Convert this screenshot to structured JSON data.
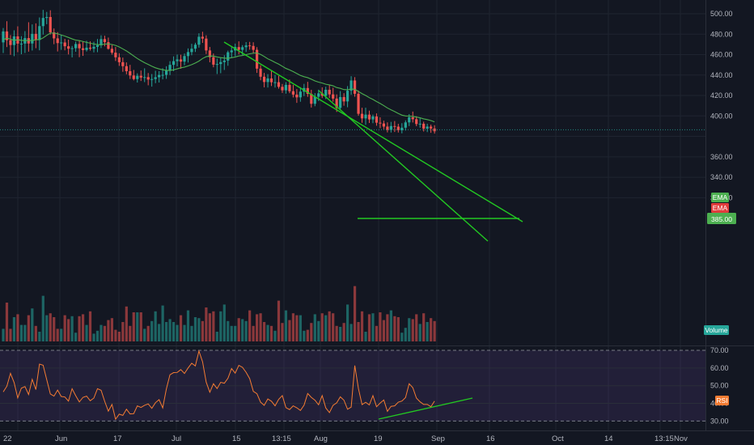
{
  "chart_data": {
    "type": "candlestick",
    "price_axis": {
      "ylim": [
        302,
        508
      ],
      "ticks": [
        "500.00",
        "480.00",
        "460.00",
        "440.00",
        "420.00",
        "400.00",
        "385.00",
        "360.00",
        "340.00",
        "320.00"
      ]
    },
    "rsi_axis": {
      "ylim": [
        27,
        74
      ],
      "ticks": [
        "70.00",
        "60.00",
        "50.00",
        "40.00",
        "30.00"
      ]
    },
    "x_labels": [
      "22",
      "Jun",
      "17",
      "Jul",
      "15",
      "13:15",
      "Aug",
      "19",
      "Sep",
      "16",
      "Oct",
      "14",
      "13:15",
      "Nov"
    ],
    "badges": {
      "ema_upper": "EMA",
      "ema_lower": "EMA",
      "last_price": "385.00",
      "volume": "Volume",
      "rsi": "RSI"
    },
    "last_price_value": 385,
    "rsi_levels": [
      70,
      30
    ],
    "ema_value": 386.5,
    "colors": {
      "background": "#131722",
      "up": "#26a69a",
      "down": "#ef5350",
      "ema": "#4caf50",
      "trendline": "#22c922",
      "rsi_line": "#f57c33",
      "rsi_band": "#7e57c2"
    },
    "ohlc": [
      {
        "o": 472.0,
        "h": 486.0,
        "l": 461.6,
        "c": 482.7
      },
      {
        "o": 482.7,
        "h": 492.7,
        "l": 467.4,
        "c": 474.1
      },
      {
        "o": 474.1,
        "h": 479.1,
        "l": 459.8,
        "c": 469.4
      },
      {
        "o": 469.4,
        "h": 483.8,
        "l": 458.5,
        "c": 477.9
      },
      {
        "o": 477.9,
        "h": 487.7,
        "l": 462.4,
        "c": 470.8
      },
      {
        "o": 470.8,
        "h": 478.1,
        "l": 460.4,
        "c": 470.8
      },
      {
        "o": 470.8,
        "h": 483.0,
        "l": 461.6,
        "c": 476.2
      },
      {
        "o": 476.2,
        "h": 491.7,
        "l": 462.9,
        "c": 470.9
      },
      {
        "o": 470.9,
        "h": 489.6,
        "l": 464.0,
        "c": 480.3
      },
      {
        "o": 480.3,
        "h": 490.6,
        "l": 466.3,
        "c": 474.4
      },
      {
        "o": 474.4,
        "h": 496.4,
        "l": 464.2,
        "c": 487.9
      },
      {
        "o": 487.9,
        "h": 503.8,
        "l": 479.6,
        "c": 495.9
      },
      {
        "o": 495.9,
        "h": 501.8,
        "l": 489.8,
        "c": 496.8
      },
      {
        "o": 496.8,
        "h": 503.4,
        "l": 479.7,
        "c": 481.8
      },
      {
        "o": 481.8,
        "h": 485.6,
        "l": 470.2,
        "c": 475.9
      },
      {
        "o": 475.9,
        "h": 482.1,
        "l": 463.1,
        "c": 471.3
      },
      {
        "o": 471.3,
        "h": 479.0,
        "l": 464.7,
        "c": 471.9
      },
      {
        "o": 471.9,
        "h": 475.4,
        "l": 464.2,
        "c": 468.2
      },
      {
        "o": 468.2,
        "h": 474.7,
        "l": 460.2,
        "c": 465.8
      },
      {
        "o": 465.8,
        "h": 468.5,
        "l": 457.3,
        "c": 466.3
      },
      {
        "o": 466.3,
        "h": 472.8,
        "l": 462.8,
        "c": 470.4
      },
      {
        "o": 470.4,
        "h": 473.9,
        "l": 457.5,
        "c": 466.2
      },
      {
        "o": 466.2,
        "h": 473.1,
        "l": 458.8,
        "c": 464.5
      },
      {
        "o": 464.5,
        "h": 473.6,
        "l": 463.0,
        "c": 466.8
      },
      {
        "o": 466.8,
        "h": 473.0,
        "l": 464.0,
        "c": 465.8
      },
      {
        "o": 465.8,
        "h": 472.6,
        "l": 462.2,
        "c": 467.6
      },
      {
        "o": 467.6,
        "h": 475.3,
        "l": 462.4,
        "c": 469.2
      },
      {
        "o": 469.2,
        "h": 478.9,
        "l": 466.4,
        "c": 475.2
      },
      {
        "o": 475.2,
        "h": 478.5,
        "l": 468.1,
        "c": 472.2
      },
      {
        "o": 472.2,
        "h": 476.7,
        "l": 464.9,
        "c": 465.7
      },
      {
        "o": 465.7,
        "h": 469.4,
        "l": 460.0,
        "c": 461.9
      },
      {
        "o": 461.9,
        "h": 467.5,
        "l": 453.8,
        "c": 457.4
      },
      {
        "o": 457.4,
        "h": 461.3,
        "l": 449.0,
        "c": 452.6
      },
      {
        "o": 452.6,
        "h": 457.1,
        "l": 443.2,
        "c": 448.7
      },
      {
        "o": 448.7,
        "h": 452.4,
        "l": 440.8,
        "c": 443.8
      },
      {
        "o": 443.8,
        "h": 450.0,
        "l": 436.2,
        "c": 439.6
      },
      {
        "o": 439.6,
        "h": 445.0,
        "l": 434.8,
        "c": 436.1
      },
      {
        "o": 436.1,
        "h": 441.7,
        "l": 432.7,
        "c": 439.3
      },
      {
        "o": 439.3,
        "h": 444.5,
        "l": 434.2,
        "c": 437.6
      },
      {
        "o": 437.6,
        "h": 446.6,
        "l": 433.1,
        "c": 438.0
      },
      {
        "o": 438.0,
        "h": 442.0,
        "l": 430.0,
        "c": 435.6
      },
      {
        "o": 435.6,
        "h": 441.0,
        "l": 428.7,
        "c": 436.1
      },
      {
        "o": 436.1,
        "h": 444.2,
        "l": 432.1,
        "c": 437.9
      },
      {
        "o": 437.9,
        "h": 443.9,
        "l": 432.7,
        "c": 440.1
      },
      {
        "o": 440.1,
        "h": 446.7,
        "l": 435.8,
        "c": 440.2
      },
      {
        "o": 440.2,
        "h": 448.6,
        "l": 436.3,
        "c": 444.3
      },
      {
        "o": 444.3,
        "h": 453.6,
        "l": 440.0,
        "c": 450.0
      },
      {
        "o": 450.0,
        "h": 458.3,
        "l": 443.8,
        "c": 453.6
      },
      {
        "o": 453.6,
        "h": 460.1,
        "l": 448.5,
        "c": 455.3
      },
      {
        "o": 455.3,
        "h": 459.9,
        "l": 446.2,
        "c": 453.2
      },
      {
        "o": 453.2,
        "h": 461.1,
        "l": 449.6,
        "c": 458.6
      },
      {
        "o": 458.6,
        "h": 466.1,
        "l": 452.3,
        "c": 462.5
      },
      {
        "o": 462.5,
        "h": 470.6,
        "l": 459.4,
        "c": 465.8
      },
      {
        "o": 465.8,
        "h": 471.6,
        "l": 462.6,
        "c": 469.7
      },
      {
        "o": 469.7,
        "h": 480.9,
        "l": 466.9,
        "c": 477.5
      },
      {
        "o": 477.5,
        "h": 482.4,
        "l": 471.5,
        "c": 475.7
      },
      {
        "o": 475.7,
        "h": 478.9,
        "l": 460.6,
        "c": 464.1
      },
      {
        "o": 464.1,
        "h": 467.5,
        "l": 452.5,
        "c": 457.5
      },
      {
        "o": 457.5,
        "h": 461.1,
        "l": 447.6,
        "c": 450.2
      },
      {
        "o": 450.2,
        "h": 456.2,
        "l": 441.0,
        "c": 450.8
      },
      {
        "o": 450.8,
        "h": 456.8,
        "l": 441.8,
        "c": 452.7
      },
      {
        "o": 452.7,
        "h": 459.4,
        "l": 445.0,
        "c": 454.2
      },
      {
        "o": 454.2,
        "h": 463.9,
        "l": 449.1,
        "c": 462.3
      },
      {
        "o": 462.3,
        "h": 467.3,
        "l": 457.2,
        "c": 464.1
      },
      {
        "o": 464.1,
        "h": 470.8,
        "l": 458.5,
        "c": 467.4
      },
      {
        "o": 467.4,
        "h": 473.0,
        "l": 460.3,
        "c": 464.7
      },
      {
        "o": 464.7,
        "h": 469.3,
        "l": 459.7,
        "c": 467.3
      },
      {
        "o": 467.3,
        "h": 472.3,
        "l": 462.7,
        "c": 469.0
      },
      {
        "o": 469.0,
        "h": 472.5,
        "l": 464.8,
        "c": 468.5
      },
      {
        "o": 468.5,
        "h": 472.1,
        "l": 461.1,
        "c": 464.7
      },
      {
        "o": 464.7,
        "h": 467.3,
        "l": 442.1,
        "c": 446.3
      },
      {
        "o": 446.3,
        "h": 449.6,
        "l": 434.9,
        "c": 438.4
      },
      {
        "o": 438.4,
        "h": 442.1,
        "l": 428.0,
        "c": 433.2
      },
      {
        "o": 433.2,
        "h": 440.9,
        "l": 427.8,
        "c": 436.7
      },
      {
        "o": 436.7,
        "h": 443.9,
        "l": 429.3,
        "c": 433.0
      },
      {
        "o": 433.0,
        "h": 440.2,
        "l": 427.8,
        "c": 433.0
      },
      {
        "o": 433.0,
        "h": 439.3,
        "l": 426.7,
        "c": 428.5
      },
      {
        "o": 428.5,
        "h": 431.3,
        "l": 422.5,
        "c": 425.1
      },
      {
        "o": 425.1,
        "h": 433.1,
        "l": 421.8,
        "c": 430.4
      },
      {
        "o": 430.4,
        "h": 435.6,
        "l": 422.3,
        "c": 424.2
      },
      {
        "o": 424.2,
        "h": 430.4,
        "l": 418.1,
        "c": 420.9
      },
      {
        "o": 420.9,
        "h": 426.3,
        "l": 412.8,
        "c": 418.2
      },
      {
        "o": 418.2,
        "h": 428.1,
        "l": 413.9,
        "c": 423.8
      },
      {
        "o": 423.8,
        "h": 431.4,
        "l": 419.5,
        "c": 427.3
      },
      {
        "o": 427.3,
        "h": 433.4,
        "l": 418.7,
        "c": 421.6
      },
      {
        "o": 421.6,
        "h": 425.6,
        "l": 408.2,
        "c": 411.9
      },
      {
        "o": 411.9,
        "h": 422.3,
        "l": 409.5,
        "c": 418.8
      },
      {
        "o": 418.8,
        "h": 425.7,
        "l": 414.6,
        "c": 422.1
      },
      {
        "o": 422.1,
        "h": 428.0,
        "l": 417.5,
        "c": 419.7
      },
      {
        "o": 419.7,
        "h": 428.6,
        "l": 416.5,
        "c": 425.6
      },
      {
        "o": 425.6,
        "h": 430.0,
        "l": 417.5,
        "c": 421.1
      },
      {
        "o": 421.1,
        "h": 427.6,
        "l": 414.0,
        "c": 417.0
      },
      {
        "o": 417.0,
        "h": 421.1,
        "l": 403.9,
        "c": 407.9
      },
      {
        "o": 407.9,
        "h": 424.3,
        "l": 405.5,
        "c": 418.5
      },
      {
        "o": 418.5,
        "h": 422.3,
        "l": 410.0,
        "c": 414.2
      },
      {
        "o": 414.2,
        "h": 429.2,
        "l": 408.5,
        "c": 424.7
      },
      {
        "o": 424.7,
        "h": 438.9,
        "l": 420.7,
        "c": 434.7
      },
      {
        "o": 434.7,
        "h": 438.0,
        "l": 418.8,
        "c": 421.7
      },
      {
        "o": 421.7,
        "h": 424.9,
        "l": 400.2,
        "c": 402.1
      },
      {
        "o": 402.1,
        "h": 408.0,
        "l": 393.3,
        "c": 397.6
      },
      {
        "o": 397.6,
        "h": 408.1,
        "l": 391.3,
        "c": 401.3
      },
      {
        "o": 401.3,
        "h": 405.2,
        "l": 393.1,
        "c": 396.6
      },
      {
        "o": 396.6,
        "h": 401.3,
        "l": 392.9,
        "c": 399.5
      },
      {
        "o": 399.5,
        "h": 402.5,
        "l": 390.4,
        "c": 393.4
      },
      {
        "o": 393.4,
        "h": 398.7,
        "l": 388.1,
        "c": 392.6
      },
      {
        "o": 392.6,
        "h": 395.4,
        "l": 387.0,
        "c": 389.6
      },
      {
        "o": 389.6,
        "h": 393.7,
        "l": 383.9,
        "c": 386.4
      },
      {
        "o": 386.4,
        "h": 394.2,
        "l": 383.8,
        "c": 390.1
      },
      {
        "o": 390.1,
        "h": 395.0,
        "l": 384.3,
        "c": 389.5
      },
      {
        "o": 389.5,
        "h": 392.3,
        "l": 383.8,
        "c": 386.1
      },
      {
        "o": 386.1,
        "h": 392.9,
        "l": 383.0,
        "c": 388.5
      },
      {
        "o": 388.5,
        "h": 395.7,
        "l": 385.7,
        "c": 393.7
      },
      {
        "o": 393.7,
        "h": 401.8,
        "l": 390.1,
        "c": 398.7
      },
      {
        "o": 398.7,
        "h": 404.3,
        "l": 393.6,
        "c": 396.8
      },
      {
        "o": 396.8,
        "h": 399.7,
        "l": 390.0,
        "c": 392.1
      },
      {
        "o": 392.1,
        "h": 397.8,
        "l": 388.5,
        "c": 392.4
      },
      {
        "o": 392.4,
        "h": 394.4,
        "l": 384.8,
        "c": 387.6
      },
      {
        "o": 387.6,
        "h": 392.4,
        "l": 384.2,
        "c": 389.6
      },
      {
        "o": 389.6,
        "h": 391.5,
        "l": 383.5,
        "c": 387.7
      },
      {
        "o": 387.7,
        "h": 390.9,
        "l": 382.7,
        "c": 385.0
      }
    ],
    "volume": [
      0.13,
      0.4,
      0.13,
      0.25,
      0.28,
      0.17,
      0.17,
      0.27,
      0.34,
      0.16,
      0.1,
      0.47,
      0.27,
      0.29,
      0.25,
      0.13,
      0.13,
      0.27,
      0.23,
      0.26,
      0.09,
      0.26,
      0.28,
      0.17,
      0.31,
      0.08,
      0.11,
      0.17,
      0.16,
      0.22,
      0.24,
      0.12,
      0.1,
      0.2,
      0.36,
      0.16,
      0.3,
      0.3,
      0.3,
      0.13,
      0.16,
      0.21,
      0.31,
      0.18,
      0.37,
      0.2,
      0.23,
      0.2,
      0.17,
      0.27,
      0.17,
      0.32,
      0.16,
      0.25,
      0.24,
      0.21,
      0.35,
      0.29,
      0.31,
      0.1,
      0.31,
      0.38,
      0.21,
      0.16,
      0.16,
      0.24,
      0.23,
      0.21,
      0.32,
      0.16,
      0.28,
      0.29,
      0.2,
      0.17,
      0.16,
      0.11,
      0.42,
      0.19,
      0.32,
      0.22,
      0.29,
      0.27,
      0.27,
      0.11,
      0.12,
      0.19,
      0.28,
      0.21,
      0.29,
      0.27,
      0.31,
      0.29,
      0.16,
      0.15,
      0.19,
      0.38,
      0.18,
      0.57,
      0.2,
      0.31,
      0.1,
      0.28,
      0.29,
      0.16,
      0.3,
      0.22,
      0.28,
      0.32,
      0.26,
      0.25,
      0.09,
      0.14,
      0.24,
      0.23,
      0.28,
      0.18,
      0.29,
      0.2,
      0.24,
      0.21
    ],
    "rsi": [
      46.5,
      49.7,
      57.0,
      51.8,
      43.1,
      48.6,
      49.5,
      45.0,
      53.6,
      47.8,
      62.2,
      61.6,
      53.4,
      45.3,
      44.1,
      47.5,
      43.9,
      43.6,
      41.3,
      48.3,
      44.3,
      40.8,
      43.4,
      44.1,
      41.5,
      43.0,
      48.3,
      47.4,
      41.1,
      35.6,
      39.4,
      31.0,
      33.9,
      33.2,
      36.7,
      34.0,
      34.2,
      38.6,
      37.7,
      38.9,
      39.7,
      37.2,
      40.4,
      42.1,
      37.4,
      48.1,
      56.2,
      57.4,
      57.5,
      59.1,
      56.9,
      60.0,
      62.7,
      61.2,
      69.6,
      63.5,
      52.0,
      46.3,
      51.1,
      48.4,
      51.9,
      51.4,
      54.2,
      59.7,
      57.1,
      61.5,
      60.4,
      57.6,
      54.0,
      46.8,
      45.5,
      40.7,
      38.9,
      42.5,
      41.2,
      38.6,
      42.3,
      44.4,
      37.6,
      36.5,
      38.6,
      37.5,
      36.0,
      39.0,
      45.6,
      43.4,
      41.8,
      39.2,
      44.4,
      37.4,
      34.8,
      38.9,
      40.3,
      43.7,
      41.8,
      36.7,
      37.9,
      61.4,
      48.4,
      39.3,
      40.6,
      39.1,
      44.4,
      38.1,
      40.2,
      41.9,
      35.5,
      38.3,
      38.6,
      40.7,
      41.3,
      43.3,
      51.1,
      48.9,
      43.0,
      40.9,
      39.4,
      39.4,
      38.1,
      41.3
    ],
    "ema": [
      474.6,
      476.2,
      475.1,
      474.0,
      474.6,
      474.0,
      473.6,
      474.0,
      473.6,
      474.6,
      474.6,
      476.4,
      478.9,
      481.1,
      481.1,
      480.4,
      479.2,
      478.1,
      476.8,
      475.4,
      474.2,
      473.7,
      472.9,
      472.0,
      471.2,
      470.4,
      469.9,
      469.6,
      470.3,
      470.5,
      469.9,
      469.0,
      467.5,
      465.6,
      463.6,
      461.2,
      458.7,
      456.2,
      454.1,
      452.1,
      450.4,
      448.6,
      447.1,
      446.0,
      445.2,
      444.5,
      444.5,
      445.1,
      446.1,
      447.1,
      447.8,
      448.9,
      450.2,
      451.8,
      453.7,
      456.2,
      458.0,
      458.7,
      458.6,
      457.7,
      457.1,
      456.6,
      456.4,
      457.0,
      457.7,
      458.7,
      459.2,
      460.0,
      460.8,
      461.4,
      461.7,
      460.2,
      458.2,
      455.9,
      454.3,
      452.4,
      450.7,
      448.6,
      446.5,
      445.1,
      443.4,
      441.5,
      439.6,
      438.4,
      437.5,
      436.0,
      434.3,
      433.1,
      432.2,
      431.0,
      430.4,
      429.5,
      427.8,
      427.0,
      425.8,
      425.6,
      426.4,
      426.0,
      424.0,
      421.8,
      420.0,
      417.9,
      416.2,
      414.1,
      412.2,
      410.1,
      407.8,
      406.0,
      404.3,
      402.4,
      400.8,
      400.0,
      399.9,
      399.6,
      398.9,
      398.2,
      397.1,
      396.4,
      395.5,
      394.2
    ]
  }
}
